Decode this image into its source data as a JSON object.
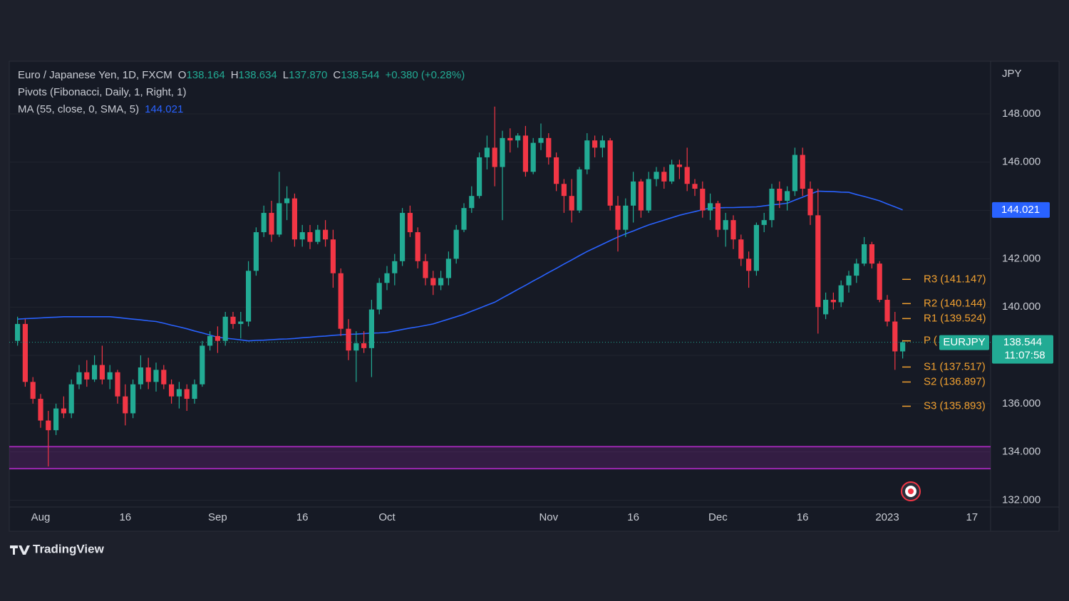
{
  "chart_data": {
    "type": "candlestick",
    "header": {
      "title": "Euro / Japanese Yen, 1D, FXCM",
      "ohlc": [
        {
          "key": "O",
          "value": "138.164"
        },
        {
          "key": "H",
          "value": "138.634"
        },
        {
          "key": "L",
          "value": "137.870"
        },
        {
          "key": "C",
          "value": "138.544"
        }
      ],
      "change": "+0.380 (+0.28%)"
    },
    "currency": "JPY",
    "up_color": "#22ab94",
    "down_color": "#f23645",
    "grid": true,
    "ylim": [
      131.72,
      150.12
    ],
    "yticks": [
      {
        "value": 132,
        "label": "132.000"
      },
      {
        "value": 134,
        "label": "134.000"
      },
      {
        "value": 136,
        "label": "136.000"
      },
      {
        "value": 138,
        "label": "138.000"
      },
      {
        "value": 140,
        "label": "140.000"
      },
      {
        "value": 142,
        "label": "142.000"
      },
      {
        "value": 144,
        "label": "144.000"
      },
      {
        "value": 146,
        "label": "146.000"
      },
      {
        "value": 148,
        "label": "148.000"
      }
    ],
    "categories": [
      null,
      null,
      null,
      "Aug",
      null,
      null,
      null,
      null,
      null,
      null,
      null,
      null,
      null,
      null,
      "16",
      null,
      null,
      null,
      null,
      null,
      null,
      null,
      null,
      null,
      null,
      null,
      "Sep",
      null,
      null,
      null,
      null,
      null,
      null,
      null,
      null,
      null,
      null,
      "16",
      null,
      null,
      null,
      null,
      null,
      null,
      null,
      null,
      null,
      null,
      "Oct",
      null,
      null,
      null,
      null,
      null,
      null,
      null,
      null,
      null,
      null,
      null,
      null,
      null,
      null,
      null,
      null,
      null,
      null,
      null,
      null,
      "Nov",
      null,
      null,
      null,
      null,
      null,
      null,
      null,
      null,
      null,
      null,
      "16",
      null,
      null,
      null,
      null,
      null,
      null,
      null,
      null,
      null,
      null,
      "Dec",
      null,
      null,
      null,
      null,
      null,
      null,
      null,
      null,
      null,
      null,
      "16",
      null,
      null,
      null,
      null,
      null,
      null,
      null,
      null,
      null,
      null,
      "2023",
      null,
      null,
      null,
      null,
      null,
      null,
      null,
      null,
      null,
      null,
      "17",
      null,
      null
    ],
    "open": [
      138.6,
      139.3,
      136.9,
      136.2,
      135.3,
      134.9,
      135.8,
      135.6,
      136.8,
      137.3,
      137.0,
      137.6,
      137.0,
      137.3,
      136.3,
      135.6,
      136.8,
      137.5,
      136.9,
      137.4,
      136.8,
      136.3,
      136.6,
      136.2,
      136.8,
      138.4,
      138.8,
      138.6,
      139.6,
      139.3,
      139.4,
      141.5,
      143.1,
      143.9,
      143.0,
      144.3,
      144.5,
      142.8,
      143.1,
      142.7,
      143.2,
      142.8,
      141.4,
      139.1,
      138.2,
      138.5,
      138.3,
      139.9,
      141.0,
      141.4,
      141.9,
      143.9,
      143.1,
      141.9,
      141.2,
      140.9,
      141.2,
      142.0,
      143.2,
      144.1,
      144.6,
      146.2,
      146.6,
      145.8,
      147.0,
      146.9,
      147.1,
      145.6,
      146.8,
      147.0,
      146.2,
      145.1,
      144.6,
      144.0,
      145.7,
      146.9,
      146.6,
      146.9,
      144.2,
      143.2,
      144.2,
      145.2,
      144.0,
      145.3,
      145.6,
      145.2,
      145.9,
      145.8,
      145.1,
      144.9,
      144.0,
      144.3,
      143.2,
      143.6,
      142.8,
      142.0,
      141.5,
      143.4,
      143.6,
      144.9,
      144.4,
      144.8,
      146.3,
      144.9,
      143.8,
      139.7,
      140.3,
      140.2,
      140.9,
      141.3,
      141.8,
      142.6,
      141.8,
      140.3,
      139.4,
      138.164,
      null,
      null,
      null,
      null,
      null,
      null,
      null,
      null,
      null,
      null,
      null
    ],
    "high": [
      139.6,
      139.5,
      137.1,
      136.4,
      135.7,
      136.0,
      136.3,
      137.0,
      137.6,
      137.8,
      138.0,
      138.4,
      137.6,
      137.4,
      136.8,
      137.0,
      138.0,
      137.9,
      137.7,
      137.6,
      137.0,
      136.9,
      136.8,
      137.0,
      138.6,
      139.0,
      139.2,
      139.8,
      139.8,
      139.8,
      141.9,
      143.3,
      144.2,
      144.4,
      145.6,
      145.0,
      144.7,
      143.4,
      143.4,
      143.4,
      143.6,
      143.2,
      141.6,
      139.5,
      139.0,
      139.0,
      140.3,
      141.2,
      141.7,
      142.2,
      144.1,
      144.2,
      143.3,
      142.2,
      141.5,
      141.5,
      142.3,
      143.4,
      144.3,
      145.0,
      146.4,
      147.1,
      148.3,
      147.3,
      147.4,
      147.2,
      147.5,
      147.0,
      147.6,
      147.2,
      146.4,
      145.3,
      145.3,
      145.8,
      147.2,
      147.1,
      147.1,
      147.0,
      144.6,
      144.5,
      145.6,
      145.3,
      145.6,
      145.8,
      145.8,
      146.1,
      146.1,
      146.6,
      145.3,
      145.2,
      144.7,
      144.4,
      143.9,
      143.8,
      143.0,
      142.3,
      143.5,
      143.9,
      145.1,
      145.2,
      145.0,
      146.6,
      146.6,
      145.2,
      144.9,
      140.6,
      140.6,
      141.1,
      141.5,
      142.0,
      142.9,
      142.7,
      141.9,
      140.5,
      139.8,
      138.634,
      null,
      null,
      null,
      null,
      null,
      null,
      null,
      null,
      null,
      null,
      null
    ],
    "low": [
      138.4,
      136.7,
      136.0,
      135.0,
      133.4,
      134.7,
      135.4,
      135.4,
      136.6,
      136.7,
      136.9,
      136.8,
      136.6,
      136.0,
      135.1,
      135.4,
      136.6,
      136.6,
      136.5,
      136.6,
      136.0,
      135.8,
      135.7,
      136.0,
      136.7,
      138.2,
      138.1,
      138.4,
      139.1,
      138.7,
      139.2,
      141.3,
      142.9,
      142.7,
      142.9,
      143.6,
      142.5,
      142.5,
      142.4,
      142.6,
      142.5,
      140.8,
      138.8,
      137.8,
      136.9,
      138.1,
      137.1,
      139.7,
      140.7,
      140.9,
      141.7,
      142.9,
      141.6,
      140.9,
      140.5,
      140.7,
      140.9,
      141.8,
      143.1,
      143.9,
      144.5,
      145.7,
      145.0,
      143.6,
      146.4,
      146.6,
      145.4,
      145.5,
      146.5,
      145.9,
      144.8,
      143.9,
      143.5,
      143.9,
      145.5,
      146.2,
      146.2,
      144.0,
      142.3,
      142.9,
      143.5,
      143.7,
      143.9,
      145.0,
      144.9,
      145.1,
      145.3,
      144.8,
      144.6,
      143.7,
      143.6,
      142.9,
      142.5,
      142.4,
      141.7,
      140.8,
      141.3,
      143.1,
      143.3,
      144.1,
      144.0,
      144.6,
      144.6,
      143.4,
      138.9,
      139.5,
      139.9,
      140.0,
      140.6,
      141.0,
      141.7,
      141.6,
      140.2,
      139.2,
      137.4,
      137.87,
      null,
      null,
      null,
      null,
      null,
      null,
      null,
      null,
      null,
      null,
      null
    ],
    "close": [
      139.3,
      136.9,
      136.2,
      135.3,
      134.9,
      135.8,
      135.6,
      136.8,
      137.3,
      137.0,
      137.6,
      137.0,
      137.3,
      136.3,
      135.6,
      136.8,
      137.5,
      136.9,
      137.4,
      136.8,
      136.3,
      136.6,
      136.2,
      136.8,
      138.4,
      138.8,
      138.6,
      139.6,
      139.3,
      139.4,
      141.5,
      143.1,
      143.9,
      143.0,
      144.3,
      144.5,
      142.8,
      143.1,
      142.7,
      143.2,
      142.8,
      141.4,
      139.1,
      138.2,
      138.5,
      138.3,
      139.9,
      141.0,
      141.4,
      141.9,
      143.9,
      143.1,
      141.9,
      141.2,
      140.9,
      141.2,
      142.0,
      143.2,
      144.1,
      144.6,
      146.2,
      146.6,
      145.8,
      147.0,
      146.9,
      147.1,
      145.6,
      146.8,
      147.0,
      146.2,
      145.1,
      144.6,
      144.0,
      145.7,
      146.9,
      146.6,
      146.9,
      144.2,
      143.2,
      144.2,
      145.2,
      144.0,
      145.3,
      145.6,
      145.2,
      145.9,
      145.8,
      145.1,
      144.9,
      144.0,
      144.3,
      143.2,
      143.6,
      142.8,
      142.0,
      141.5,
      143.4,
      143.6,
      144.9,
      144.4,
      144.8,
      146.3,
      144.9,
      143.8,
      140.0,
      140.3,
      140.2,
      140.9,
      141.3,
      141.8,
      142.6,
      141.8,
      140.3,
      139.4,
      138.164,
      138.544,
      null,
      null,
      null,
      null,
      null,
      null,
      null,
      null,
      null,
      null,
      null
    ],
    "ma": {
      "label": "MA (55, close, 0, SMA, 5)",
      "value_label": "144.021",
      "color": "#2962ff",
      "values": [
        139.5,
        139.52,
        139.53,
        139.55,
        139.57,
        139.58,
        139.6,
        139.6,
        139.6,
        139.6,
        139.6,
        139.6,
        139.6,
        139.57,
        139.53,
        139.5,
        139.47,
        139.43,
        139.4,
        139.33,
        139.25,
        139.18,
        139.1,
        139.01,
        138.93,
        138.84,
        138.75,
        138.71,
        138.68,
        138.64,
        138.6,
        138.62,
        138.63,
        138.65,
        138.67,
        138.68,
        138.7,
        138.73,
        138.75,
        138.78,
        138.8,
        138.83,
        138.85,
        138.87,
        138.88,
        138.9,
        138.92,
        138.93,
        138.95,
        139.01,
        139.07,
        139.13,
        139.18,
        139.24,
        139.3,
        139.4,
        139.5,
        139.6,
        139.7,
        139.83,
        139.95,
        140.08,
        140.2,
        140.38,
        140.55,
        140.73,
        140.9,
        141.08,
        141.25,
        141.43,
        141.6,
        141.78,
        141.95,
        142.13,
        142.3,
        142.45,
        142.6,
        142.75,
        142.9,
        143.03,
        143.15,
        143.28,
        143.4,
        143.5,
        143.6,
        143.7,
        143.8,
        143.88,
        143.95,
        144.03,
        144.1,
        144.11,
        144.12,
        144.12,
        144.13,
        144.14,
        144.15,
        144.19,
        144.23,
        144.26,
        144.3,
        144.43,
        144.55,
        144.68,
        144.8,
        144.79,
        144.78,
        144.76,
        144.75,
        144.66,
        144.58,
        144.49,
        144.4,
        144.27,
        144.15,
        144.021,
        null,
        null,
        null,
        null,
        null,
        null,
        null,
        null,
        null,
        null,
        null
      ]
    },
    "pivots": {
      "label": "Pivots (Fibonacci, Daily, 1, Right, 1)",
      "color": "#f0a030",
      "levels": [
        {
          "label": "R3 (141.147)",
          "value": 141.147
        },
        {
          "label": "R2 (140.144)",
          "value": 140.144
        },
        {
          "label": "R1 (139.524)",
          "value": 139.524
        },
        {
          "label": "P (",
          "value": 138.6
        },
        {
          "label": "S1 (137.517)",
          "value": 137.517
        },
        {
          "label": "S2 (136.897)",
          "value": 136.897
        },
        {
          "label": "S3 (135.893)",
          "value": 135.893
        }
      ]
    },
    "last_price": {
      "symbol": "EURJPY",
      "value": 138.544,
      "label": "138.544",
      "countdown": "11:07:58"
    },
    "zone": {
      "range": [
        133.31,
        134.22
      ],
      "color": "#9c27b0"
    }
  },
  "branding": "TradingView"
}
